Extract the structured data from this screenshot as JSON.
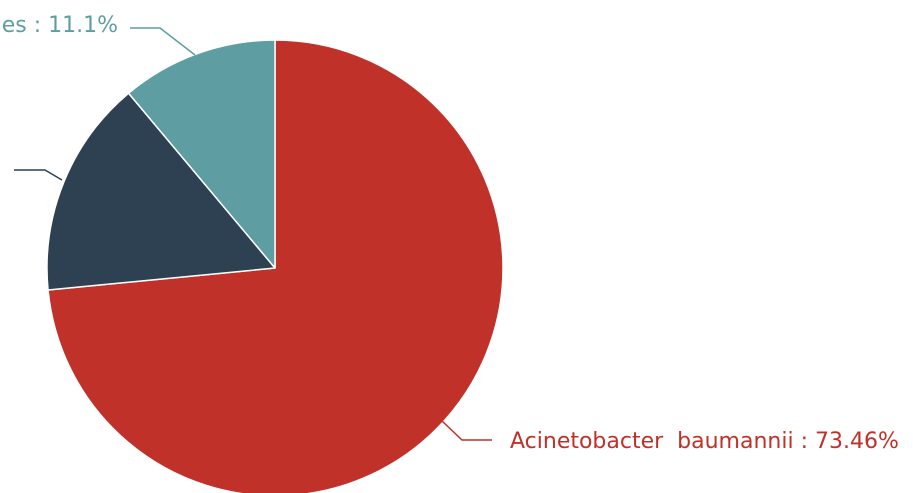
{
  "chart_data": {
    "type": "pie",
    "title": "",
    "slices": [
      {
        "label": "Acinetobacter  baumannii : 73.46%",
        "value": 73.46,
        "color": "#bf3129"
      },
      {
        "label": "",
        "value": 15.44,
        "color": "#2e4152"
      },
      {
        "label": "es : 11.1%",
        "value": 11.1,
        "color": "#5e9ea3"
      }
    ],
    "start_angle": "12 o'clock",
    "direction": "clockwise",
    "legend": "none"
  }
}
